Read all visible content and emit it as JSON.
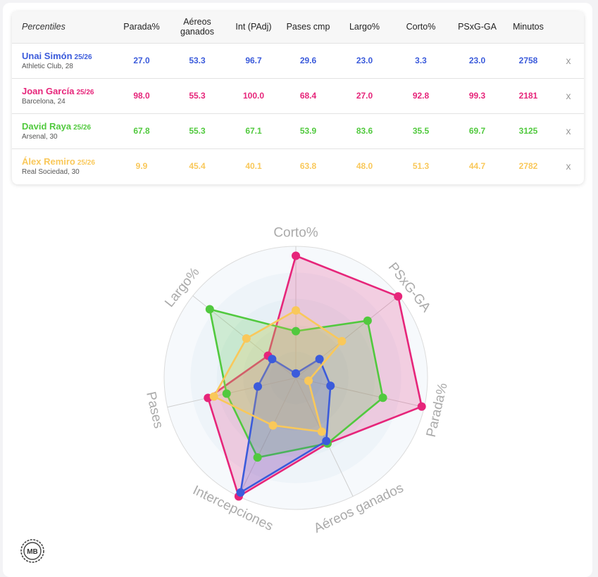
{
  "table": {
    "header_label": "Percentiles",
    "columns": [
      "Parada%",
      "Aéreos ganados",
      "Int (PAdj)",
      "Pases cmp",
      "Largo%",
      "Corto%",
      "PSxG-GA",
      "Minutos"
    ],
    "remove_label": "x",
    "rows": [
      {
        "name": "Unai Simón",
        "season": "25/26",
        "team": "Athletic Club, 28",
        "color": "#3b5bdb",
        "values": [
          "27.0",
          "53.3",
          "96.7",
          "29.6",
          "23.0",
          "3.3",
          "23.0",
          "2758"
        ]
      },
      {
        "name": "Joan García",
        "season": "25/26",
        "team": "Barcelona, 24",
        "color": "#e6257a",
        "values": [
          "98.0",
          "55.3",
          "100.0",
          "68.4",
          "27.0",
          "92.8",
          "99.3",
          "2181"
        ]
      },
      {
        "name": "David Raya",
        "season": "25/26",
        "team": "Arsenal, 30",
        "color": "#51c93e",
        "values": [
          "67.8",
          "55.3",
          "67.1",
          "53.9",
          "83.6",
          "35.5",
          "69.7",
          "3125"
        ]
      },
      {
        "name": "Álex Remiro",
        "season": "25/26",
        "team": "Real Sociedad, 30",
        "color": "#f9c85a",
        "values": [
          "9.9",
          "45.4",
          "40.1",
          "63.8",
          "48.0",
          "51.3",
          "44.7",
          "2782"
        ]
      }
    ]
  },
  "chart_data": {
    "type": "radar",
    "axes": [
      "Corto%",
      "PSxG-GA",
      "Parada%",
      "Aéreos ganados",
      "Intercepciones",
      "Pases",
      "Largo%"
    ],
    "range": [
      0,
      100
    ],
    "series": [
      {
        "name": "Unai Simón",
        "color": "#3b5bdb",
        "values": [
          3.3,
          23.0,
          27.0,
          53.3,
          96.7,
          29.6,
          23.0
        ]
      },
      {
        "name": "Joan García",
        "color": "#e6257a",
        "values": [
          92.8,
          99.3,
          98.0,
          55.3,
          100.0,
          68.4,
          27.0
        ]
      },
      {
        "name": "David Raya",
        "color": "#51c93e",
        "values": [
          35.5,
          69.7,
          67.8,
          55.3,
          67.1,
          53.9,
          83.6
        ]
      },
      {
        "name": "Álex Remiro",
        "color": "#f9c85a",
        "values": [
          51.3,
          44.7,
          9.9,
          45.4,
          40.1,
          63.8,
          48.0
        ]
      }
    ]
  },
  "logo": {
    "text": "MB"
  }
}
